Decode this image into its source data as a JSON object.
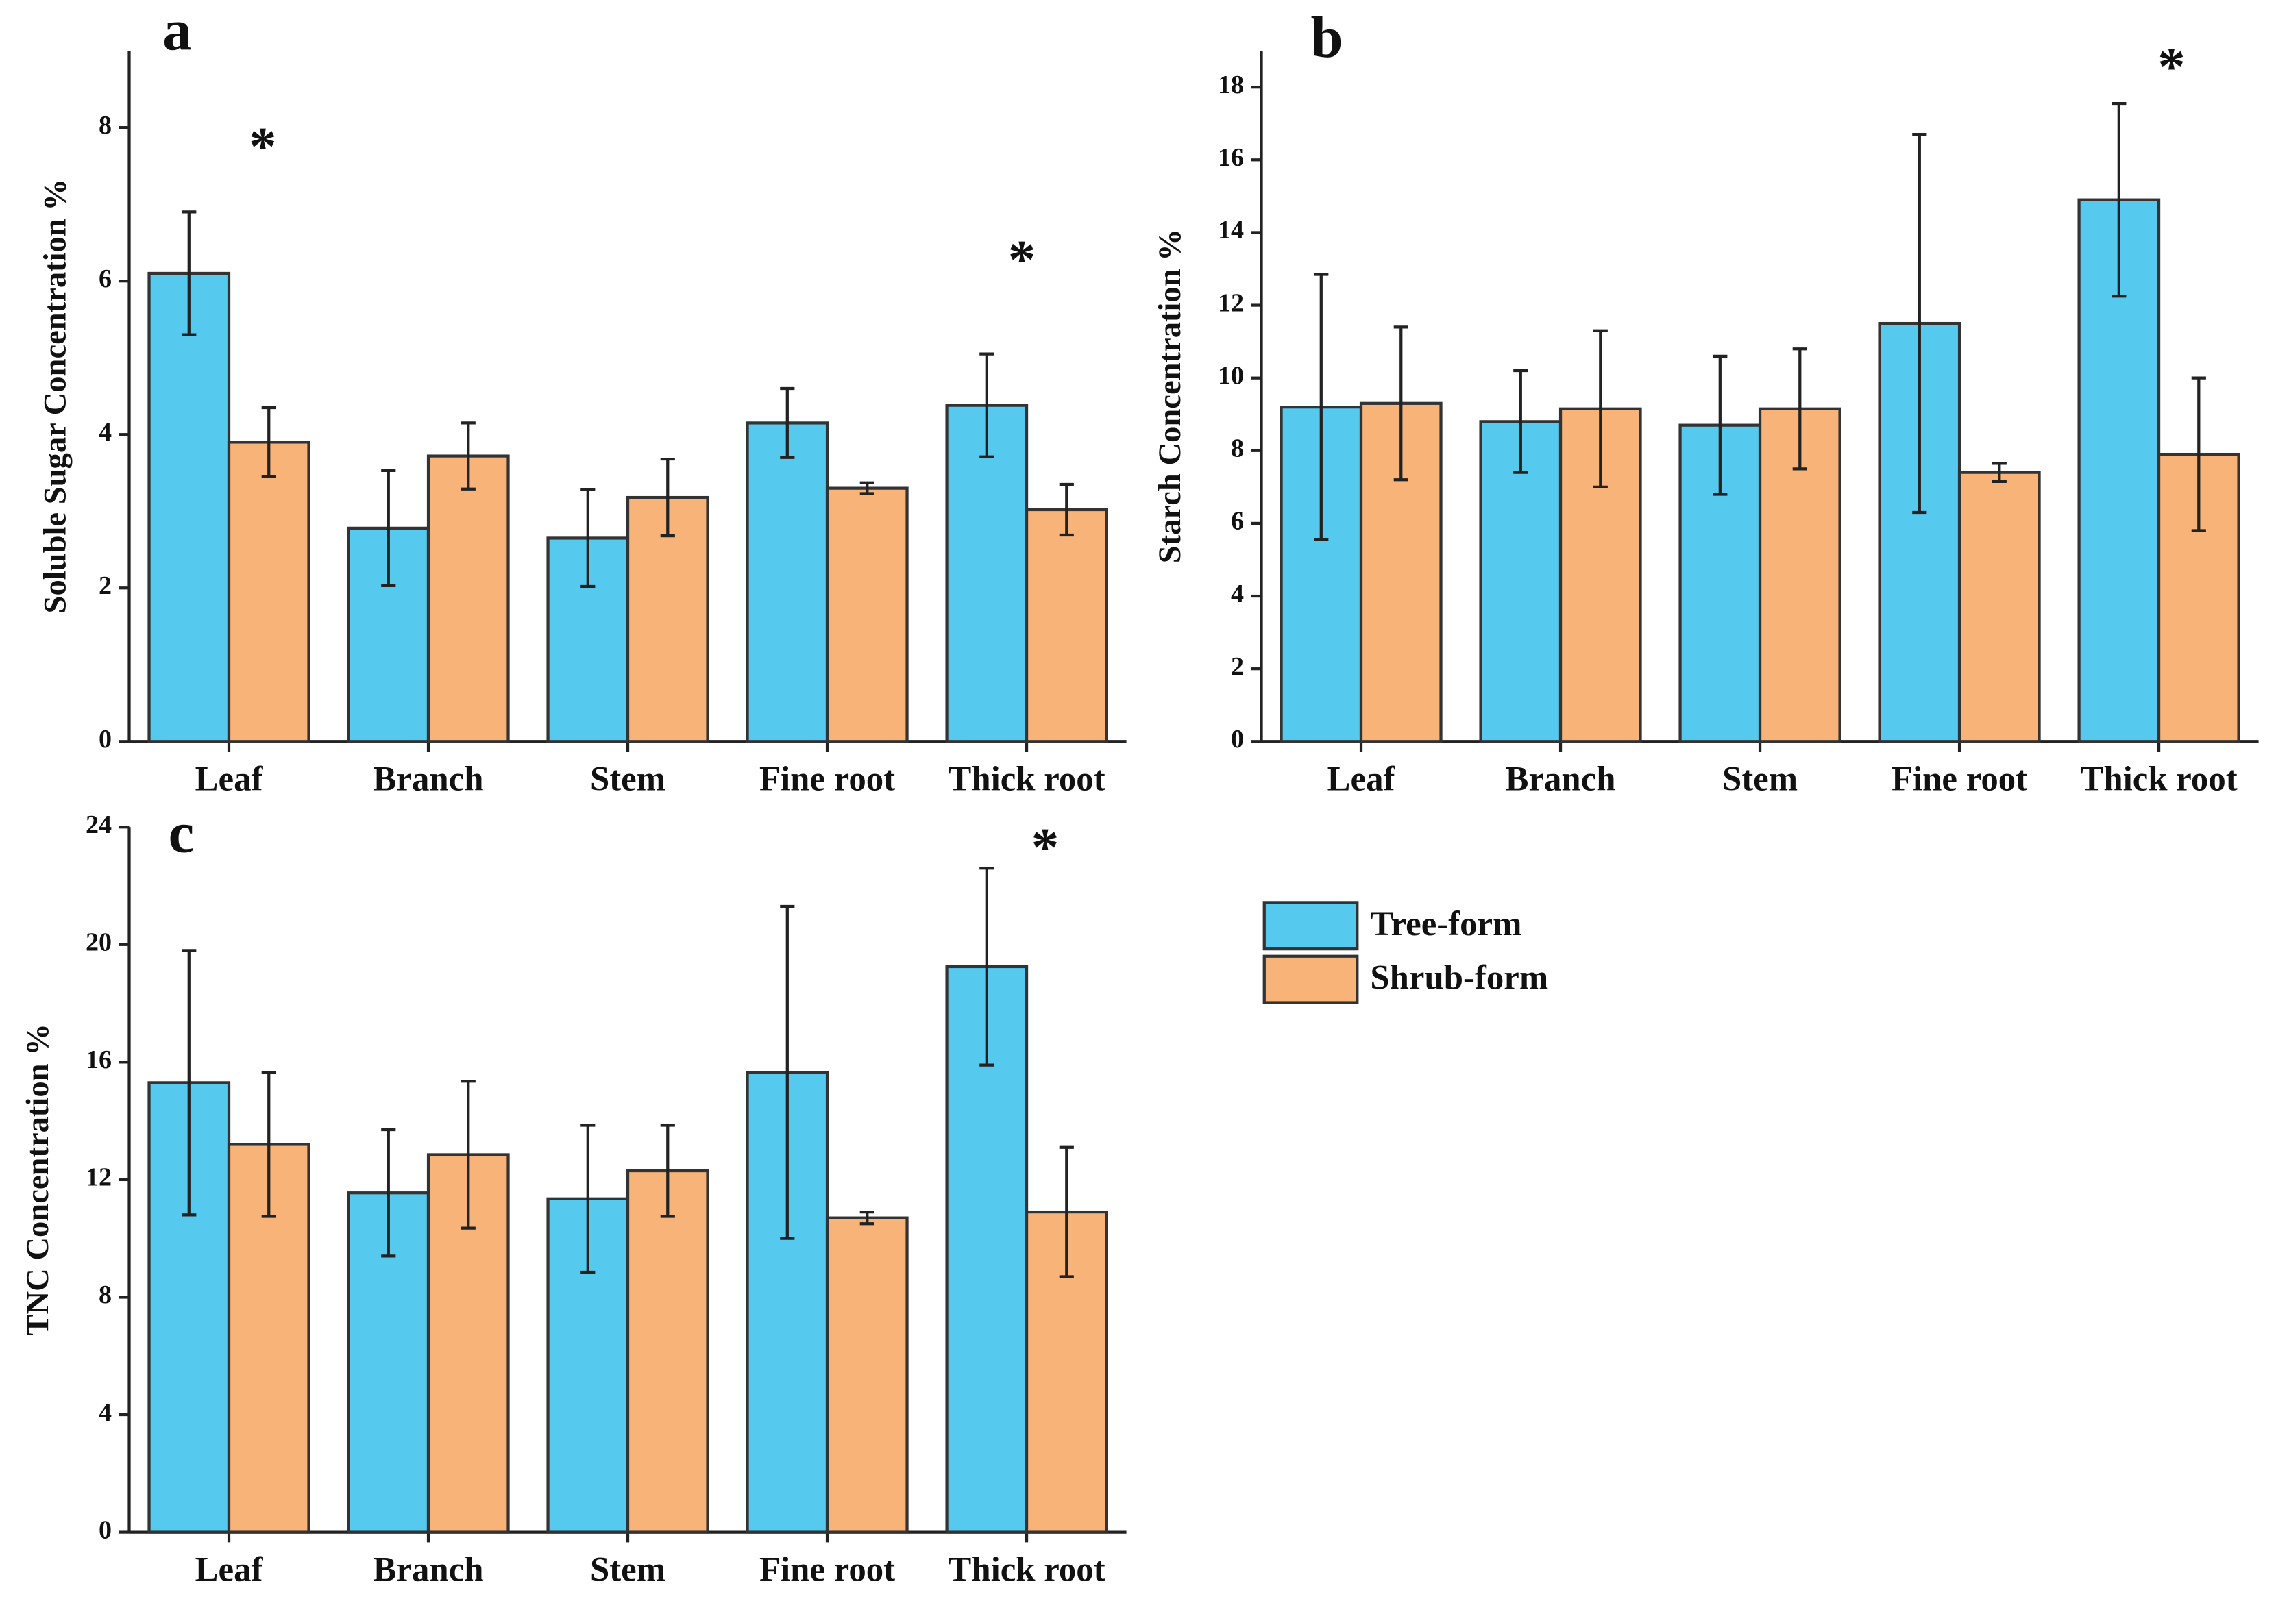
{
  "chart_data": [
    {
      "type": "bar",
      "label": "a",
      "y_label": "Soluble Sugar Concentration %",
      "categories": [
        "Leaf",
        "Branch",
        "Stem",
        "Fine root",
        "Thick root"
      ],
      "series": [
        {
          "color": "#56c9ef",
          "values": [
            6.1,
            2.78,
            2.65,
            4.15,
            4.38
          ],
          "errors": [
            0.8,
            0.75,
            0.63,
            0.45,
            0.67
          ]
        },
        {
          "color": "#f8b478",
          "values": [
            3.9,
            3.72,
            3.18,
            3.3,
            3.02
          ],
          "errors": [
            0.45,
            0.43,
            0.5,
            0.07,
            0.33
          ]
        }
      ],
      "ylim": [
        0,
        9
      ],
      "yticks": [
        0,
        2,
        4,
        6,
        8
      ],
      "annotations": [
        "*",
        "*"
      ]
    },
    {
      "type": "bar",
      "label": "b",
      "y_label": "Starch Concentration %",
      "categories": [
        "Leaf",
        "Branch",
        "Stem",
        "Fine root",
        "Thick root"
      ],
      "series": [
        {
          "color": "#56c9ef",
          "values": [
            9.2,
            8.8,
            8.7,
            11.5,
            14.9
          ],
          "errors": [
            3.65,
            1.4,
            1.9,
            5.2,
            2.65
          ]
        },
        {
          "color": "#f8b478",
          "values": [
            9.3,
            9.15,
            9.15,
            7.4,
            7.9
          ],
          "errors": [
            2.1,
            2.15,
            1.65,
            0.25,
            2.1
          ]
        }
      ],
      "ylim": [
        0,
        19
      ],
      "yticks": [
        0,
        2,
        4,
        6,
        8,
        10,
        12,
        14,
        16,
        18
      ],
      "annotations": [
        "*"
      ]
    },
    {
      "type": "bar",
      "label": "c",
      "y_label": "TNC Concentration %",
      "categories": [
        "Leaf",
        "Branch",
        "Stem",
        "Fine root",
        "Thick root"
      ],
      "series": [
        {
          "name": "Tree-form",
          "color": "#56c9ef",
          "values": [
            15.3,
            11.55,
            11.35,
            15.65,
            19.25
          ],
          "errors": [
            4.5,
            2.15,
            2.5,
            5.65,
            3.35
          ]
        },
        {
          "name": "Shrub-form",
          "color": "#f8b478",
          "values": [
            13.2,
            12.85,
            12.3,
            10.7,
            10.9
          ],
          "errors": [
            2.45,
            2.5,
            1.55,
            0.2,
            2.2
          ]
        }
      ],
      "ylim": [
        0,
        24
      ],
      "yticks": [
        0,
        4,
        8,
        12,
        16,
        20,
        24
      ],
      "annotations": [
        "*"
      ]
    }
  ]
}
